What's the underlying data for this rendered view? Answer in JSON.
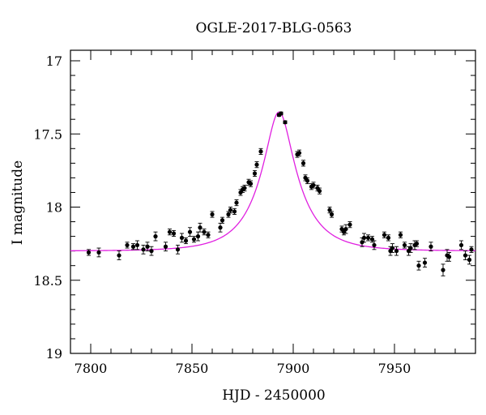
{
  "chart_data": {
    "type": "scatter",
    "title": "OGLE-2017-BLG-0563",
    "xlabel": "HJD - 2450000",
    "ylabel": "I magnitude",
    "xlim": [
      7790,
      7990
    ],
    "ylim": [
      19,
      16.95
    ],
    "y_inverted": true,
    "x_ticks": [
      7800,
      7850,
      7900,
      7950
    ],
    "x_tick_labels": [
      "7800",
      "7850",
      "7900",
      "7950"
    ],
    "y_ticks": [
      17,
      17.5,
      18,
      18.5,
      19
    ],
    "y_tick_labels": [
      "17",
      "17.5",
      "18",
      "18.5",
      "19"
    ],
    "grid": false,
    "model_color": "#e020e0",
    "point_color": "#000000",
    "model_curve": {
      "name": "",
      "baseline": 18.3,
      "peak_mag": 17.35,
      "t0": 7893,
      "tE": 20.3,
      "fs": 0.6
    },
    "series": [
      {
        "name": "",
        "points": [
          [
            7799,
            18.31,
            0.02
          ],
          [
            7804,
            18.31,
            0.03
          ],
          [
            7814,
            18.33,
            0.03
          ],
          [
            7818,
            18.26,
            0.02
          ],
          [
            7821,
            18.27,
            0.02
          ],
          [
            7823,
            18.26,
            0.03
          ],
          [
            7826,
            18.29,
            0.03
          ],
          [
            7828,
            18.27,
            0.03
          ],
          [
            7830,
            18.3,
            0.03
          ],
          [
            7832,
            18.2,
            0.03
          ],
          [
            7837,
            18.27,
            0.03
          ],
          [
            7839,
            18.17,
            0.02
          ],
          [
            7841,
            18.18,
            0.02
          ],
          [
            7843,
            18.29,
            0.03
          ],
          [
            7845,
            18.21,
            0.03
          ],
          [
            7847,
            18.23,
            0.02
          ],
          [
            7849,
            18.17,
            0.03
          ],
          [
            7851,
            18.22,
            0.02
          ],
          [
            7853,
            18.2,
            0.03
          ],
          [
            7854,
            18.14,
            0.03
          ],
          [
            7856,
            18.17,
            0.02
          ],
          [
            7858,
            18.19,
            0.02
          ],
          [
            7860,
            18.05,
            0.02
          ],
          [
            7864,
            18.14,
            0.03
          ],
          [
            7865,
            18.09,
            0.02
          ],
          [
            7868,
            18.05,
            0.02
          ],
          [
            7869,
            18.02,
            0.02
          ],
          [
            7871,
            18.03,
            0.02
          ],
          [
            7872,
            17.97,
            0.02
          ],
          [
            7874,
            17.9,
            0.02
          ],
          [
            7875,
            17.88,
            0.02
          ],
          [
            7876,
            17.87,
            0.02
          ],
          [
            7878,
            17.83,
            0.02
          ],
          [
            7879,
            17.84,
            0.02
          ],
          [
            7881,
            17.77,
            0.02
          ],
          [
            7882,
            17.71,
            0.02
          ],
          [
            7884,
            17.62,
            0.02
          ],
          [
            7893,
            17.37,
            0.01
          ],
          [
            7894,
            17.36,
            0.01
          ],
          [
            7896,
            17.42,
            0.01
          ],
          [
            7902,
            17.64,
            0.02
          ],
          [
            7903,
            17.63,
            0.02
          ],
          [
            7905,
            17.7,
            0.02
          ],
          [
            7906,
            17.8,
            0.02
          ],
          [
            7907,
            17.82,
            0.02
          ],
          [
            7909,
            17.86,
            0.02
          ],
          [
            7910,
            17.85,
            0.02
          ],
          [
            7912,
            17.87,
            0.02
          ],
          [
            7913,
            17.89,
            0.02
          ],
          [
            7918,
            18.02,
            0.02
          ],
          [
            7919,
            18.05,
            0.02
          ],
          [
            7924,
            18.15,
            0.02
          ],
          [
            7925,
            18.17,
            0.02
          ],
          [
            7926,
            18.15,
            0.03
          ],
          [
            7928,
            18.12,
            0.02
          ],
          [
            7934,
            18.24,
            0.03
          ],
          [
            7935,
            18.21,
            0.03
          ],
          [
            7937,
            18.21,
            0.02
          ],
          [
            7939,
            18.22,
            0.02
          ],
          [
            7940,
            18.26,
            0.03
          ],
          [
            7945,
            18.19,
            0.02
          ],
          [
            7947,
            18.21,
            0.02
          ],
          [
            7948,
            18.3,
            0.03
          ],
          [
            7949,
            18.28,
            0.03
          ],
          [
            7951,
            18.3,
            0.03
          ],
          [
            7953,
            18.19,
            0.02
          ],
          [
            7955,
            18.26,
            0.02
          ],
          [
            7957,
            18.3,
            0.03
          ],
          [
            7958,
            18.28,
            0.03
          ],
          [
            7960,
            18.26,
            0.03
          ],
          [
            7961,
            18.25,
            0.02
          ],
          [
            7962,
            18.4,
            0.03
          ],
          [
            7965,
            18.38,
            0.03
          ],
          [
            7968,
            18.27,
            0.03
          ],
          [
            7974,
            18.43,
            0.04
          ],
          [
            7976,
            18.33,
            0.04
          ],
          [
            7977,
            18.34,
            0.03
          ],
          [
            7983,
            18.26,
            0.03
          ],
          [
            7985,
            18.33,
            0.03
          ],
          [
            7987,
            18.36,
            0.03
          ],
          [
            7988,
            18.29,
            0.02
          ]
        ]
      }
    ]
  }
}
